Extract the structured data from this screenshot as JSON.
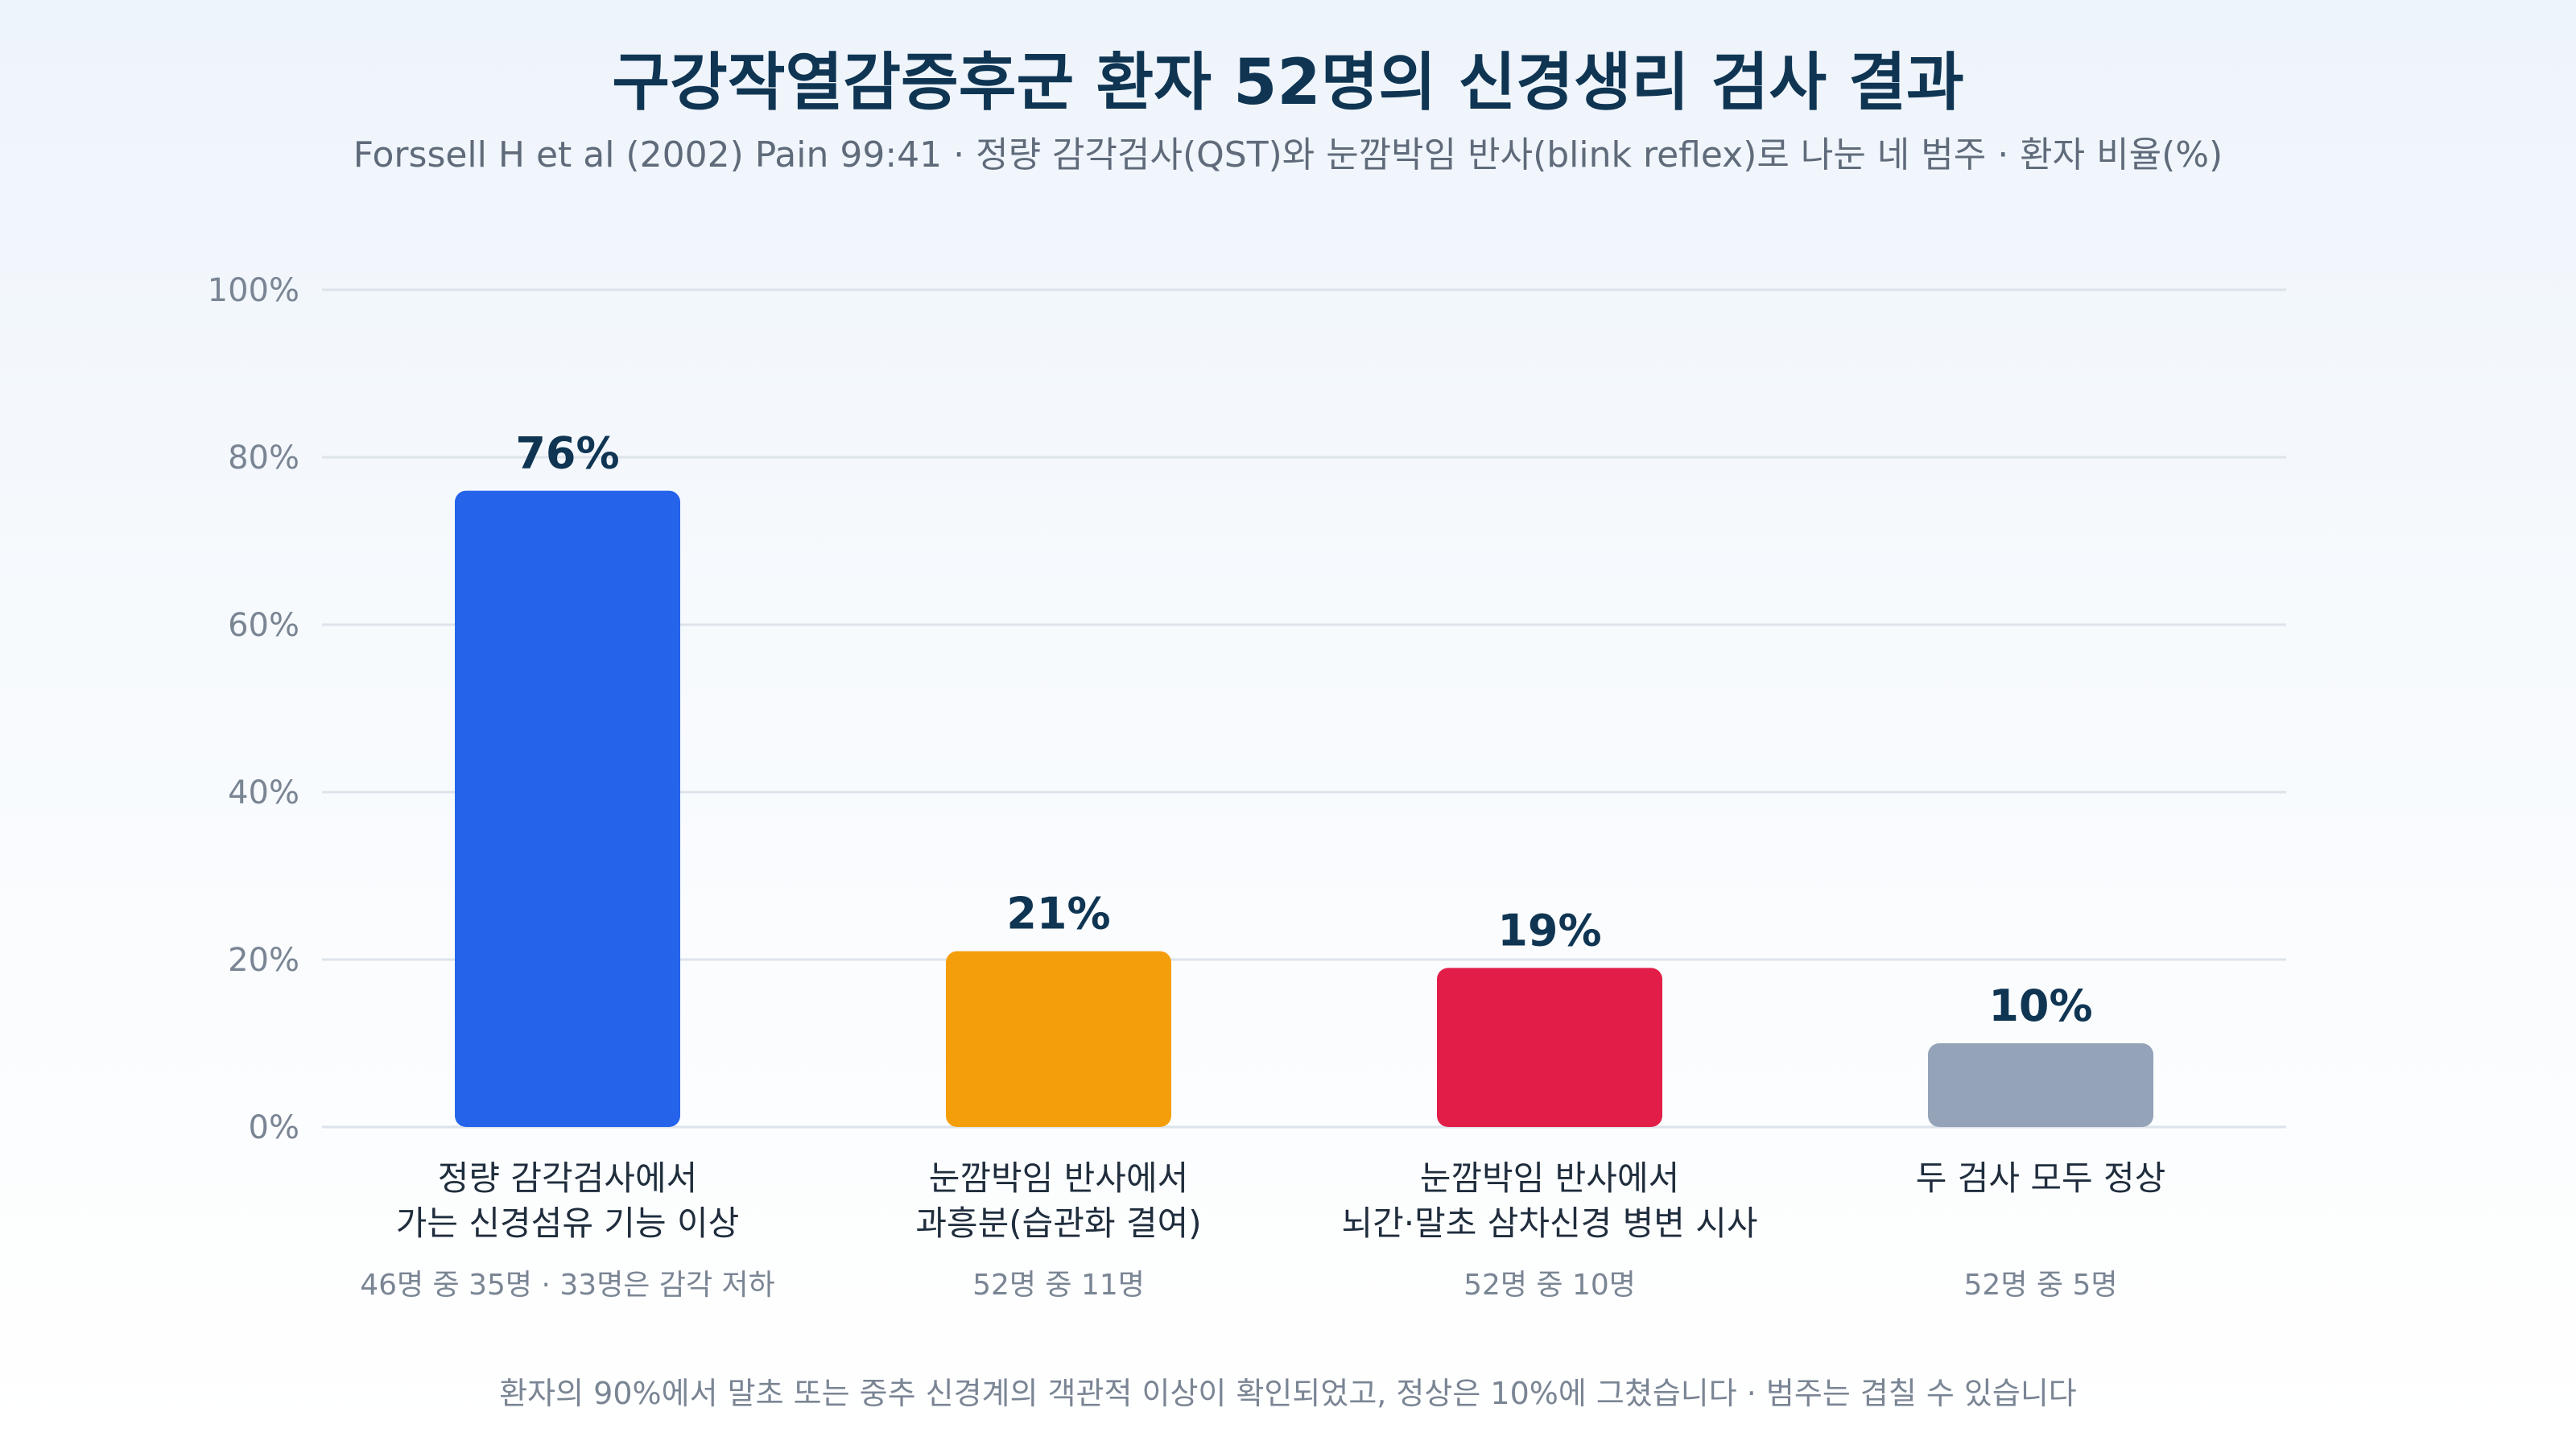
{
  "title": "구강작열감증후군 환자 52명의 신경생리 검사 결과",
  "subtitle": "Forssell H et al (2002) Pain 99:41 · 정량 감각검사(QST)와 눈깜박임 반사(blink reflex)로 나눈 네 범주 · 환자 비율(%)",
  "footnote": "환자의 90%에서 말초 또는 중추 신경계의 객관적 이상이 확인되었고, 정상은 10%에 그쳤습니다 · 범주는 겹칠 수 있습니다",
  "colors": {
    "grid": "#dde3ea",
    "tick": "#7a8594",
    "value_label": "#0f3553",
    "category_label": "#1f2d3d",
    "note": "#7a8594"
  },
  "chart_data": {
    "type": "bar",
    "title": "구강작열감증후군 환자 52명의 신경생리 검사 결과",
    "subtitle": "Forssell H et al (2002) Pain 99:41 · 정량 감각검사(QST)와 눈깜박임 반사(blink reflex)로 나눈 네 범주 · 환자 비율(%)",
    "xlabel": "",
    "ylabel": "",
    "ylim": [
      0,
      100
    ],
    "yticks": [
      0,
      20,
      40,
      60,
      80,
      100
    ],
    "ytick_labels": [
      "0%",
      "20%",
      "40%",
      "60%",
      "80%",
      "100%"
    ],
    "grid": true,
    "legend": "none",
    "categories": [
      [
        "정량 감각검사에서",
        "가는 신경섬유 기능 이상"
      ],
      [
        "눈깜박임 반사에서",
        "과흥분(습관화 결여)"
      ],
      [
        "눈깜박임 반사에서",
        "뇌간·말초 삼차신경 병변 시사"
      ],
      [
        "두 검사 모두 정상"
      ]
    ],
    "values": [
      76,
      21,
      19,
      10
    ],
    "value_labels": [
      "76%",
      "21%",
      "19%",
      "10%"
    ],
    "notes": [
      "46명 중 35명 · 33명은 감각 저하",
      "52명 중 11명",
      "52명 중 10명",
      "52명 중 5명"
    ],
    "bar_colors": [
      "#2563eb",
      "#f59e0b",
      "#e11d48",
      "#94a3b8"
    ]
  }
}
